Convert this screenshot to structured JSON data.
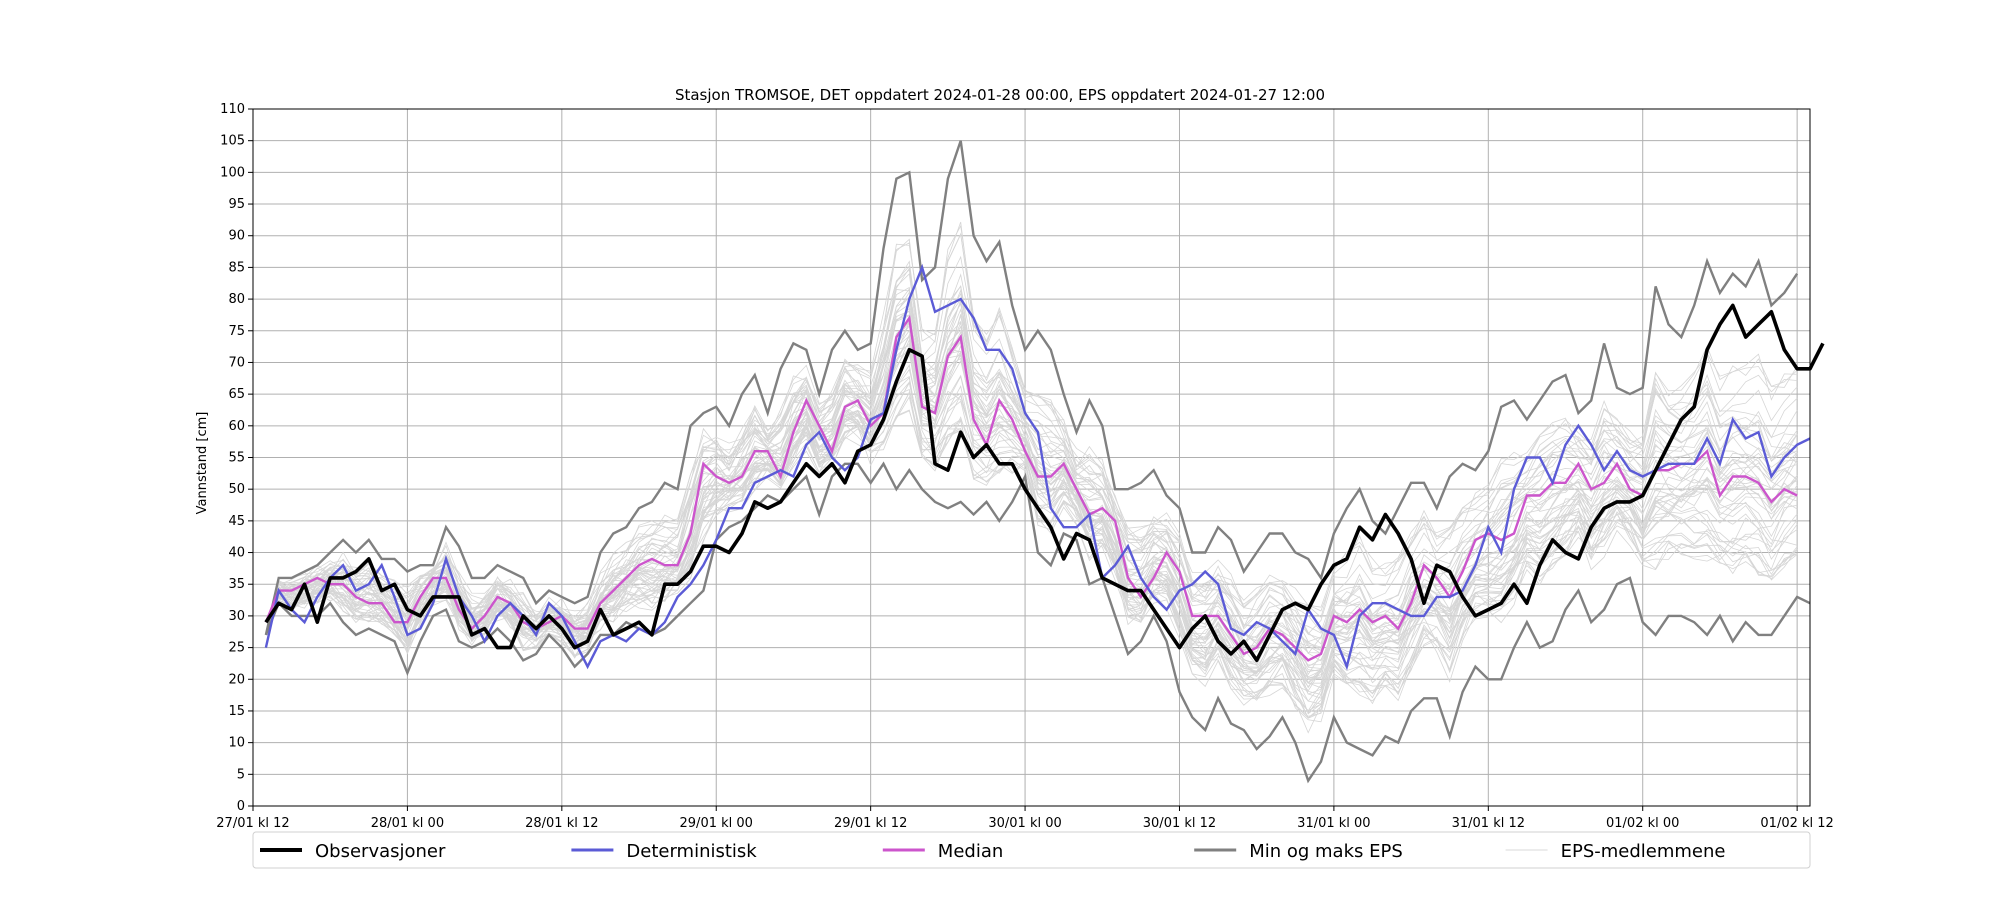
{
  "chart_data": {
    "type": "line",
    "title": "Stasjon TROMSOE, DET oppdatert 2024-01-28 00:00, EPS oppdatert 2024-01-27 12:00",
    "xlabel": "",
    "ylabel": "Vannstand [cm]",
    "ylim": [
      0,
      110
    ],
    "yticks": [
      0,
      5,
      10,
      15,
      20,
      25,
      30,
      35,
      40,
      45,
      50,
      55,
      60,
      65,
      70,
      75,
      80,
      85,
      90,
      95,
      100,
      105,
      110
    ],
    "x_start": "27/01 kl 12",
    "x_end": "01/02 kl 12",
    "x_step_hours": 1,
    "xticks": [
      {
        "hour": 0,
        "label": "27/01 kl 12"
      },
      {
        "hour": 12,
        "label": "28/01 kl 00"
      },
      {
        "hour": 24,
        "label": "28/01 kl 12"
      },
      {
        "hour": 36,
        "label": "29/01 kl 00"
      },
      {
        "hour": 48,
        "label": "29/01 kl 12"
      },
      {
        "hour": 60,
        "label": "30/01 kl 00"
      },
      {
        "hour": 72,
        "label": "30/01 kl 12"
      },
      {
        "hour": 84,
        "label": "31/01 kl 00"
      },
      {
        "hour": 96,
        "label": "31/01 kl 12"
      },
      {
        "hour": 108,
        "label": "01/02 kl 00"
      },
      {
        "hour": 120,
        "label": "01/02 kl 12"
      }
    ],
    "grid": true,
    "legend_position": "bottom",
    "series": [
      {
        "name": "Observasjoner",
        "color": "#000000",
        "start_hour": 1,
        "values": [
          29,
          32,
          31,
          35,
          29,
          36,
          36,
          37,
          39,
          34,
          35,
          31,
          30,
          33,
          33,
          33,
          27,
          28,
          25,
          25,
          30,
          28,
          30,
          28,
          25,
          26,
          31,
          27,
          28,
          29,
          27,
          35,
          35,
          37,
          41,
          41,
          40,
          43,
          48,
          47,
          48,
          51,
          54,
          52,
          54,
          51,
          56,
          57,
          61,
          67,
          72,
          71,
          54,
          53,
          59,
          55,
          57,
          54,
          54,
          50,
          47,
          44,
          39,
          43,
          42,
          36,
          35,
          34,
          34,
          31,
          28,
          25,
          28,
          30,
          26,
          24,
          26,
          23,
          27,
          31,
          32,
          31,
          35,
          38,
          39,
          44,
          42,
          46,
          43,
          39,
          32,
          38,
          37,
          33,
          30,
          31,
          32,
          35,
          32,
          38,
          42,
          40,
          39,
          44,
          47,
          48,
          48,
          49,
          53,
          57,
          61,
          63,
          72,
          76,
          79,
          74,
          76,
          78,
          72,
          69,
          69,
          73
        ]
      },
      {
        "name": "Deterministisk",
        "color": "#5b5bd6",
        "start_hour": 1,
        "values": [
          25,
          34,
          31,
          29,
          33,
          36,
          38,
          34,
          35,
          38,
          33,
          27,
          28,
          32,
          39,
          33,
          30,
          26,
          30,
          32,
          30,
          27,
          32,
          30,
          26,
          22,
          26,
          27,
          26,
          28,
          27,
          29,
          33,
          35,
          38,
          42,
          47,
          47,
          51,
          52,
          53,
          52,
          57,
          59,
          55,
          53,
          55,
          61,
          62,
          72,
          80,
          85,
          78,
          79,
          80,
          77,
          72,
          72,
          69,
          62,
          59,
          47,
          44,
          44,
          46,
          36,
          38,
          41,
          36,
          33,
          31,
          34,
          35,
          37,
          35,
          28,
          27,
          29,
          28,
          26,
          24,
          31,
          28,
          27,
          22,
          30,
          32,
          32,
          31,
          30,
          30,
          33,
          33,
          34,
          38,
          44,
          40,
          50,
          55,
          55,
          51,
          57,
          60,
          57,
          53,
          56,
          53,
          52,
          53,
          54,
          54,
          54,
          58,
          54,
          61,
          58,
          59,
          52,
          55,
          57,
          58
        ]
      },
      {
        "name": "Median",
        "color": "#cc55cc",
        "start_hour": 1,
        "values": [
          29,
          34,
          34,
          35,
          36,
          35,
          35,
          33,
          32,
          32,
          29,
          29,
          33,
          36,
          36,
          31,
          28,
          30,
          33,
          32,
          29,
          28,
          29,
          30,
          28,
          28,
          32,
          34,
          36,
          38,
          39,
          38,
          38,
          43,
          54,
          52,
          51,
          52,
          56,
          56,
          52,
          59,
          64,
          60,
          56,
          63,
          64,
          60,
          62,
          74,
          77,
          63,
          62,
          71,
          74,
          61,
          57,
          64,
          61,
          56,
          52,
          52,
          54,
          50,
          46,
          47,
          45,
          36,
          33,
          36,
          40,
          37,
          30,
          30,
          30,
          27,
          24,
          25,
          28,
          27,
          25,
          23,
          24,
          30,
          29,
          31,
          29,
          30,
          28,
          32,
          38,
          36,
          33,
          37,
          42,
          43,
          42,
          43,
          49,
          49,
          51,
          51,
          54,
          50,
          51,
          54,
          50,
          49,
          53,
          53,
          54,
          54,
          56,
          49,
          52,
          52,
          51,
          48,
          50,
          49
        ]
      },
      {
        "name": "Min og maks EPS",
        "color": "#808080",
        "start_hour": 1,
        "upper": [
          27,
          36,
          36,
          37,
          38,
          40,
          42,
          40,
          42,
          39,
          39,
          37,
          38,
          38,
          44,
          41,
          36,
          36,
          38,
          37,
          36,
          32,
          34,
          33,
          32,
          33,
          40,
          43,
          44,
          47,
          48,
          51,
          50,
          60,
          62,
          63,
          60,
          65,
          68,
          62,
          69,
          73,
          72,
          65,
          72,
          75,
          72,
          73,
          88,
          99,
          100,
          83,
          85,
          99,
          105,
          90,
          86,
          89,
          79,
          72,
          75,
          72,
          65,
          59,
          64,
          60,
          50,
          50,
          51,
          53,
          49,
          47,
          40,
          40,
          44,
          42,
          37,
          40,
          43,
          43,
          40,
          39,
          36,
          43,
          47,
          50,
          45,
          43,
          47,
          51,
          51,
          47,
          52,
          54,
          53,
          56,
          63,
          64,
          61,
          64,
          67,
          68,
          62,
          64,
          73,
          66,
          65,
          66,
          82,
          76,
          74,
          79,
          86,
          81,
          84,
          82,
          86,
          79,
          81,
          84
        ]
      },
      {
        "name": "Min og maks EPS (min)",
        "color": "#808080",
        "start_hour": 1,
        "lower": [
          27,
          32,
          30,
          30,
          30,
          32,
          29,
          27,
          28,
          27,
          26,
          21,
          26,
          30,
          31,
          26,
          25,
          26,
          28,
          26,
          23,
          24,
          27,
          25,
          22,
          24,
          27,
          27,
          29,
          28,
          27,
          28,
          30,
          32,
          34,
          42,
          44,
          45,
          47,
          49,
          48,
          50,
          52,
          46,
          52,
          54,
          54,
          51,
          54,
          50,
          53,
          50,
          48,
          47,
          48,
          46,
          48,
          45,
          48,
          52,
          40,
          38,
          43,
          42,
          35,
          36,
          30,
          24,
          26,
          30,
          26,
          18,
          14,
          12,
          17,
          13,
          12,
          9,
          11,
          14,
          10,
          4,
          7,
          14,
          10,
          9,
          8,
          11,
          10,
          15,
          17,
          17,
          11,
          18,
          22,
          20,
          20,
          25,
          29,
          25,
          26,
          31,
          34,
          29,
          31,
          35,
          36,
          29,
          27,
          30,
          30,
          29,
          27,
          30,
          26,
          29,
          27,
          27,
          30,
          33,
          32
        ]
      },
      {
        "name": "EPS-medlemmene",
        "color": "#d9d9d9"
      }
    ]
  },
  "legend": [
    {
      "label": "Observasjoner",
      "color": "#000000",
      "width": 4
    },
    {
      "label": "Deterministisk",
      "color": "#5b5bd6",
      "width": 3
    },
    {
      "label": "Median",
      "color": "#cc55cc",
      "width": 3
    },
    {
      "label": "Min og maks EPS",
      "color": "#808080",
      "width": 3
    },
    {
      "label": "EPS-medlemmene",
      "color": "#d9d9d9",
      "width": 1
    }
  ]
}
